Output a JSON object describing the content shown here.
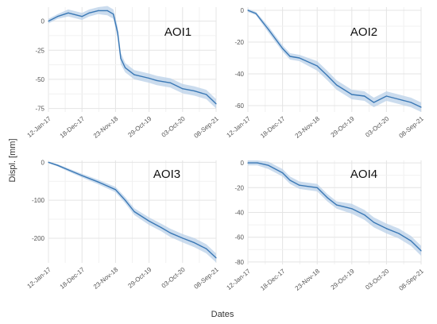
{
  "figure": {
    "ylabel": "Displ. [mm]",
    "xlabel": "Dates"
  },
  "chart_data": [
    {
      "type": "line",
      "title": "AOI1",
      "x_tick_labels": [
        "12-Jan-17",
        "18-Dec-17",
        "23-Nov-18",
        "29-Oct-19",
        "03-Oct-20",
        "08-Sep-21"
      ],
      "x_range": [
        "2017-01-12",
        "2021-09-08"
      ],
      "ylim": [
        -78,
        12
      ],
      "y_ticks": [
        0,
        -25,
        -50,
        -75
      ],
      "grid": true,
      "series": [
        {
          "color": "#3a78b5",
          "band_color": "#b9d0e8",
          "x": [
            "2017-01-12",
            "2017-04-15",
            "2017-08-01",
            "2017-12-18",
            "2018-03-01",
            "2018-06-01",
            "2018-09-01",
            "2018-11-01",
            "2018-12-15",
            "2019-01-15",
            "2019-03-01",
            "2019-06-01",
            "2019-10-29",
            "2020-01-15",
            "2020-06-01",
            "2020-10-03",
            "2021-02-01",
            "2021-06-01",
            "2021-09-08"
          ],
          "values": [
            0,
            4,
            7,
            4,
            7,
            9,
            9,
            6,
            -10,
            -32,
            -40,
            -46,
            -49,
            -51,
            -53,
            -58,
            -60,
            -63,
            -71
          ],
          "band": [
            2,
            2,
            3,
            3,
            3,
            3,
            4,
            4,
            5,
            5,
            4,
            4,
            4,
            4,
            4,
            4,
            4,
            4,
            4
          ]
        }
      ]
    },
    {
      "type": "line",
      "title": "AOI2",
      "x_tick_labels": [
        "12-Jan-17",
        "18-Dec-17",
        "23-Nov-18",
        "29-Oct-19",
        "03-Oct-20",
        "08-Sep-21"
      ],
      "x_range": [
        "2017-01-12",
        "2021-09-08"
      ],
      "ylim": [
        -64,
        2
      ],
      "y_ticks": [
        0,
        -20,
        -40,
        -60
      ],
      "grid": true,
      "series": [
        {
          "color": "#3a78b5",
          "band_color": "#b9d0e8",
          "x": [
            "2017-01-12",
            "2017-04-01",
            "2017-08-01",
            "2017-12-18",
            "2018-03-01",
            "2018-06-01",
            "2018-11-23",
            "2019-03-01",
            "2019-06-01",
            "2019-10-29",
            "2020-03-01",
            "2020-06-01",
            "2020-10-03",
            "2021-02-01",
            "2021-06-01",
            "2021-09-08"
          ],
          "values": [
            0,
            -2,
            -12,
            -24,
            -29,
            -30,
            -35,
            -41,
            -47,
            -53,
            -54,
            -58,
            -54,
            -56,
            -58,
            -61
          ],
          "band": [
            1,
            1,
            2,
            2,
            2,
            2,
            3,
            3,
            3,
            3,
            3,
            3,
            3,
            3,
            3,
            3
          ]
        }
      ]
    },
    {
      "type": "line",
      "title": "AOI3",
      "x_tick_labels": [
        "12-Jan-17",
        "18-Dec-17",
        "23-Nov-18",
        "29-Oct-19",
        "03-Oct-20",
        "08-Sep-21"
      ],
      "x_range": [
        "2017-01-12",
        "2021-09-08"
      ],
      "ylim": [
        -265,
        5
      ],
      "y_ticks": [
        0,
        -100,
        -200
      ],
      "grid": true,
      "series": [
        {
          "color": "#3a78b5",
          "band_color": "#b9d0e8",
          "x": [
            "2017-01-12",
            "2017-04-15",
            "2017-08-01",
            "2017-12-18",
            "2018-06-01",
            "2018-11-23",
            "2019-03-01",
            "2019-06-01",
            "2019-10-29",
            "2020-03-01",
            "2020-06-01",
            "2020-10-03",
            "2021-02-01",
            "2021-06-01",
            "2021-09-08"
          ],
          "values": [
            0,
            -8,
            -20,
            -35,
            -52,
            -72,
            -100,
            -130,
            -155,
            -172,
            -186,
            -200,
            -212,
            -228,
            -252
          ],
          "band": [
            2,
            3,
            4,
            5,
            6,
            7,
            8,
            9,
            10,
            10,
            11,
            11,
            12,
            12,
            12
          ]
        }
      ]
    },
    {
      "type": "line",
      "title": "AOI4",
      "x_tick_labels": [
        "12-Jan-17",
        "18-Dec-17",
        "23-Nov-18",
        "29-Oct-19",
        "03-Oct-20",
        "08-Sep-21"
      ],
      "x_range": [
        "2017-01-12",
        "2021-09-08"
      ],
      "ylim": [
        -82,
        2
      ],
      "y_ticks": [
        0,
        -20,
        -40,
        -60,
        -80
      ],
      "grid": true,
      "series": [
        {
          "color": "#3a78b5",
          "band_color": "#b9d0e8",
          "x": [
            "2017-01-12",
            "2017-04-15",
            "2017-08-01",
            "2017-12-18",
            "2018-03-01",
            "2018-06-01",
            "2018-11-23",
            "2019-03-01",
            "2019-06-01",
            "2019-10-29",
            "2020-03-01",
            "2020-06-01",
            "2020-10-03",
            "2021-02-01",
            "2021-06-01",
            "2021-09-08"
          ],
          "values": [
            0,
            0,
            -2,
            -8,
            -14,
            -18,
            -20,
            -28,
            -34,
            -37,
            -42,
            -48,
            -53,
            -57,
            -63,
            -71
          ],
          "band": [
            2,
            2,
            3,
            3,
            3,
            3,
            3,
            3,
            3,
            4,
            4,
            4,
            4,
            4,
            4,
            4
          ]
        }
      ]
    }
  ]
}
